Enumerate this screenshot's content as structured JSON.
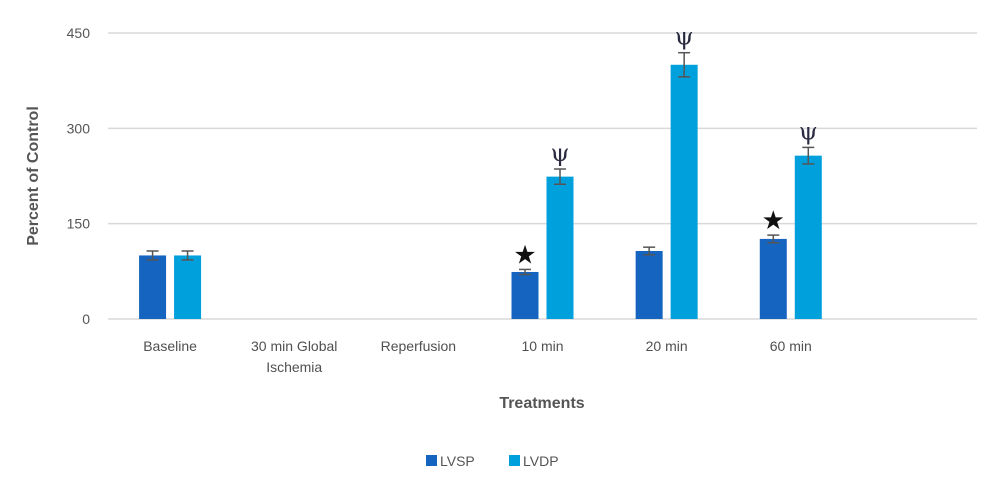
{
  "chart_data": {
    "type": "bar",
    "title": "",
    "xlabel": "Treatments",
    "ylabel": "Percent of Control",
    "ylim": [
      0,
      450
    ],
    "yticks": [
      0,
      150,
      300,
      450
    ],
    "grid": true,
    "legend_position": "bottom",
    "categories": [
      [
        "Baseline"
      ],
      [
        "30 min Global",
        "Ischemia"
      ],
      [
        "Reperfusion"
      ],
      [
        "10 min"
      ],
      [
        "20 min"
      ],
      [
        "60 min"
      ],
      [
        ""
      ]
    ],
    "series": [
      {
        "name": "LVSP",
        "color": "#1565C0",
        "values": [
          100,
          null,
          null,
          74,
          107,
          126,
          null
        ],
        "errors": [
          7,
          null,
          null,
          4,
          6,
          6,
          null
        ],
        "annotations": [
          "",
          "",
          "",
          "*",
          "",
          "*",
          ""
        ]
      },
      {
        "name": "LVDP",
        "color": "#00A0DC",
        "values": [
          100,
          null,
          null,
          224,
          400,
          257,
          null
        ],
        "errors": [
          7,
          null,
          null,
          12,
          19,
          13,
          null
        ],
        "annotations": [
          "",
          "",
          "",
          "ψ",
          "ψ",
          "ψ",
          ""
        ]
      }
    ]
  }
}
